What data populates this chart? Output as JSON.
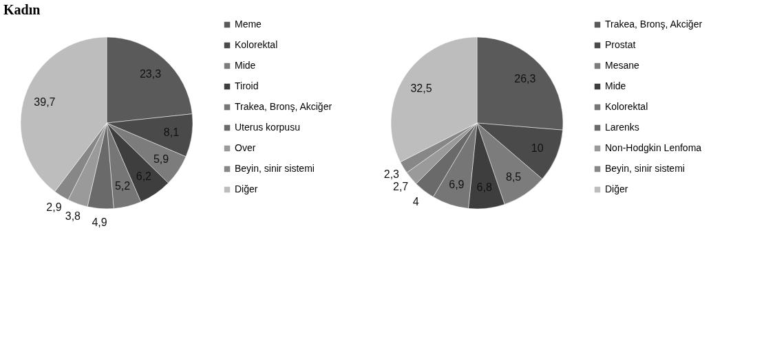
{
  "chart_data": [
    {
      "type": "pie",
      "title": "Kadın",
      "legend": "right",
      "categories": [
        "Meme",
        "Kolorektal",
        "Mide",
        "Tiroid",
        "Trakea, Bronş, Akciğer",
        "Uterus korpusu",
        "Over",
        "Beyin, sinir sistemi",
        "Diğer"
      ],
      "values": [
        23.3,
        8.1,
        5.9,
        6.2,
        5.2,
        4.9,
        3.8,
        2.9,
        39.7
      ],
      "value_labels": [
        "23,3",
        "8,1",
        "5,9",
        "6,2",
        "5,2",
        "4,9",
        "3,8",
        "2,9",
        "39,7"
      ],
      "colors": [
        "#5a5a5a",
        "#4a4a4a",
        "#7c7c7c",
        "#3e3e3e",
        "#767676",
        "#6a6a6a",
        "#9a9a9a",
        "#878787",
        "#bdbdbd"
      ]
    },
    {
      "type": "pie",
      "legend": "right",
      "categories": [
        "Trakea, Bronş, Akciğer",
        "Prostat",
        "Mesane",
        "Mide",
        "Kolorektal",
        "Larenks",
        "Non-Hodgkin Lenfoma",
        "Beyin, sinir sistemi",
        "Diğer"
      ],
      "values": [
        26.3,
        10,
        8.5,
        6.8,
        6.9,
        4,
        2.7,
        2.3,
        32.5
      ],
      "value_labels": [
        "26,3",
        "10",
        "8,5",
        "6,8",
        "6,9",
        "4",
        "2,7",
        "2,3",
        "32,5"
      ],
      "colors": [
        "#5a5a5a",
        "#4a4a4a",
        "#7c7c7c",
        "#3e3e3e",
        "#767676",
        "#6a6a6a",
        "#9a9a9a",
        "#878787",
        "#bdbdbd"
      ]
    }
  ]
}
